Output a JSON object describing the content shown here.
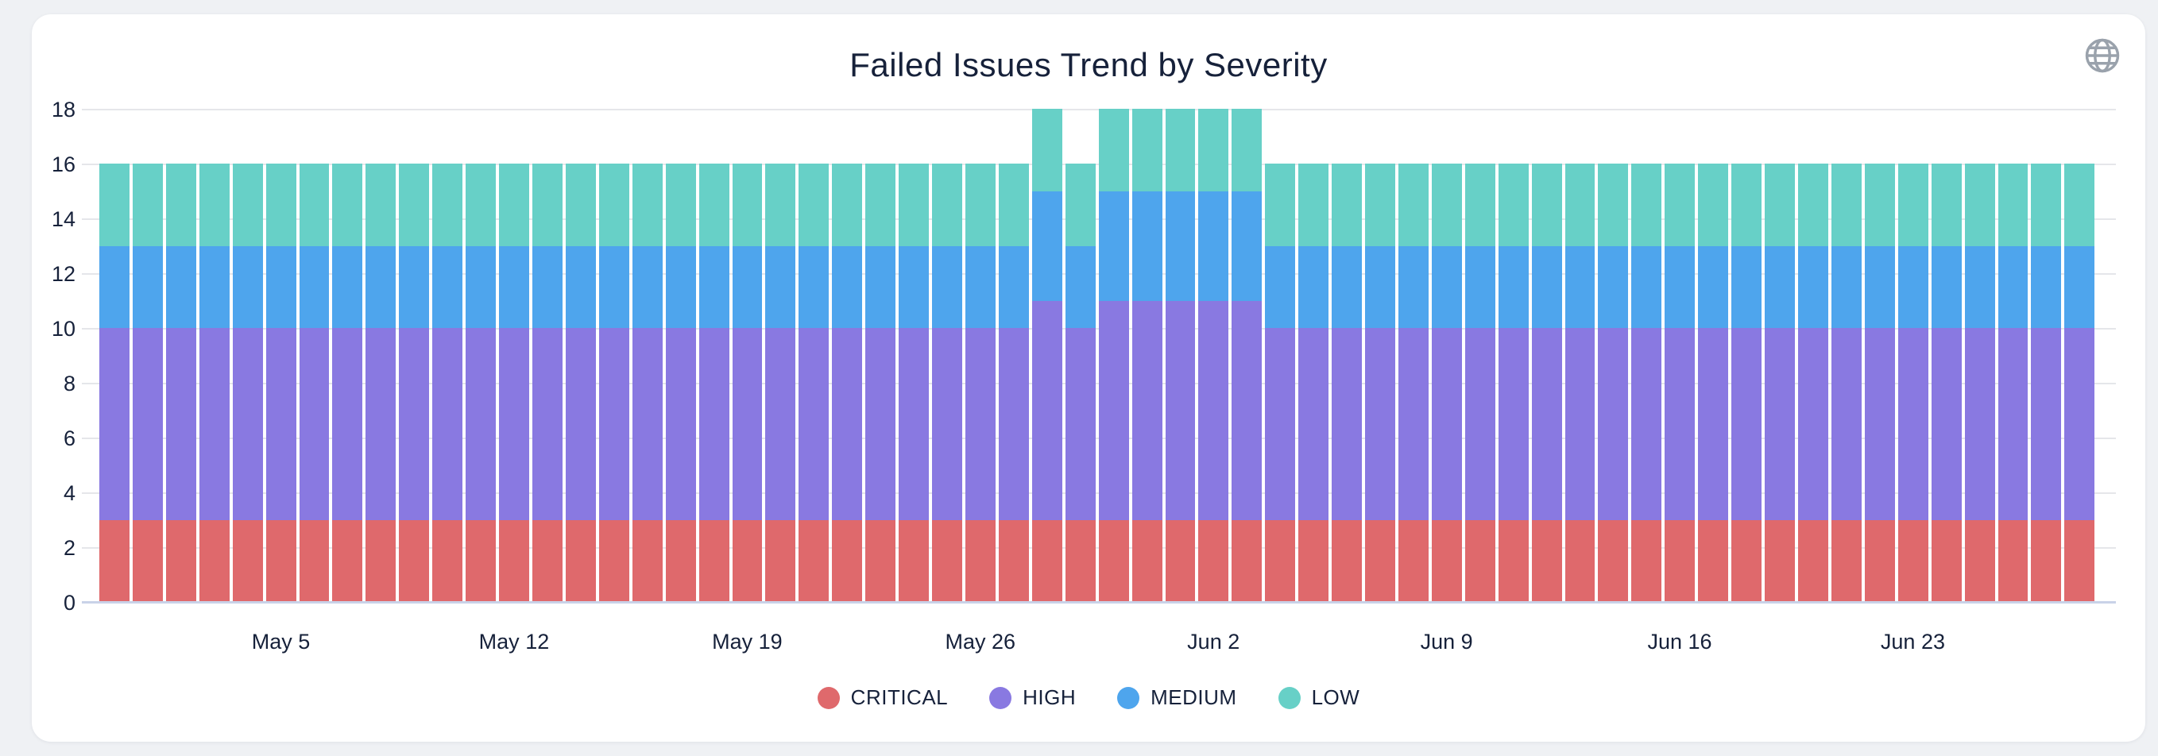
{
  "header": {
    "title": "Failed Issues Trend by Severity"
  },
  "icons": {
    "globe": "globe-icon"
  },
  "colors": {
    "page_background": "#eff1f4",
    "card_background": "#ffffff",
    "text": "#16213a",
    "grid_line": "#e5e6ea",
    "axis_line": "#c9d2e8",
    "globe_icon": "#9aa2ac",
    "critical": "#df696c",
    "high": "#8979e1",
    "medium": "#4ea5ed",
    "low": "#67d0c7"
  },
  "chart_data": {
    "type": "bar",
    "stacked": true,
    "title": "Failed Issues Trend by Severity",
    "grid": true,
    "legend_position": "bottom",
    "ylim": [
      0,
      18
    ],
    "y_ticks": [
      0,
      2,
      4,
      6,
      8,
      10,
      12,
      14,
      16,
      18
    ],
    "categories": [
      "Apr 30",
      "May 1",
      "May 2",
      "May 3",
      "May 4",
      "May 5",
      "May 6",
      "May 7",
      "May 8",
      "May 9",
      "May 10",
      "May 11",
      "May 12",
      "May 13",
      "May 14",
      "May 15",
      "May 16",
      "May 17",
      "May 18",
      "May 19",
      "May 20",
      "May 21",
      "May 22",
      "May 23",
      "May 24",
      "May 25",
      "May 26",
      "May 27",
      "May 28",
      "May 29",
      "May 30",
      "May 31",
      "Jun 1",
      "Jun 2",
      "Jun 3",
      "Jun 4",
      "Jun 5",
      "Jun 6",
      "Jun 7",
      "Jun 8",
      "Jun 9",
      "Jun 10",
      "Jun 11",
      "Jun 12",
      "Jun 13",
      "Jun 14",
      "Jun 15",
      "Jun 16",
      "Jun 17",
      "Jun 18",
      "Jun 19",
      "Jun 20",
      "Jun 21",
      "Jun 22",
      "Jun 23",
      "Jun 24",
      "Jun 25",
      "Jun 26",
      "Jun 27",
      "Jun 28"
    ],
    "x_tick_indices": [
      5,
      12,
      19,
      26,
      33,
      40,
      47,
      54
    ],
    "x_tick_labels": [
      "May 5",
      "May 12",
      "May 19",
      "May 26",
      "Jun 2",
      "Jun 9",
      "Jun 16",
      "Jun 23"
    ],
    "series": [
      {
        "name": "CRITICAL",
        "color": "#df696c",
        "values": [
          3,
          3,
          3,
          3,
          3,
          3,
          3,
          3,
          3,
          3,
          3,
          3,
          3,
          3,
          3,
          3,
          3,
          3,
          3,
          3,
          3,
          3,
          3,
          3,
          3,
          3,
          3,
          3,
          3,
          3,
          3,
          3,
          3,
          3,
          3,
          3,
          3,
          3,
          3,
          3,
          3,
          3,
          3,
          3,
          3,
          3,
          3,
          3,
          3,
          3,
          3,
          3,
          3,
          3,
          3,
          3,
          3,
          3,
          3,
          3
        ]
      },
      {
        "name": "HIGH",
        "color": "#8979e1",
        "values": [
          7,
          7,
          7,
          7,
          7,
          7,
          7,
          7,
          7,
          7,
          7,
          7,
          7,
          7,
          7,
          7,
          7,
          7,
          7,
          7,
          7,
          7,
          7,
          7,
          7,
          7,
          7,
          7,
          8,
          7,
          8,
          8,
          8,
          8,
          8,
          7,
          7,
          7,
          7,
          7,
          7,
          7,
          7,
          7,
          7,
          7,
          7,
          7,
          7,
          7,
          7,
          7,
          7,
          7,
          7,
          7,
          7,
          7,
          7,
          7
        ]
      },
      {
        "name": "MEDIUM",
        "color": "#4ea5ed",
        "values": [
          3,
          3,
          3,
          3,
          3,
          3,
          3,
          3,
          3,
          3,
          3,
          3,
          3,
          3,
          3,
          3,
          3,
          3,
          3,
          3,
          3,
          3,
          3,
          3,
          3,
          3,
          3,
          3,
          4,
          3,
          4,
          4,
          4,
          4,
          4,
          3,
          3,
          3,
          3,
          3,
          3,
          3,
          3,
          3,
          3,
          3,
          3,
          3,
          3,
          3,
          3,
          3,
          3,
          3,
          3,
          3,
          3,
          3,
          3,
          3
        ]
      },
      {
        "name": "LOW",
        "color": "#67d0c7",
        "values": [
          3,
          3,
          3,
          3,
          3,
          3,
          3,
          3,
          3,
          3,
          3,
          3,
          3,
          3,
          3,
          3,
          3,
          3,
          3,
          3,
          3,
          3,
          3,
          3,
          3,
          3,
          3,
          3,
          3,
          3,
          3,
          3,
          3,
          3,
          3,
          3,
          3,
          3,
          3,
          3,
          3,
          3,
          3,
          3,
          3,
          3,
          3,
          3,
          3,
          3,
          3,
          3,
          3,
          3,
          3,
          3,
          3,
          3,
          3,
          3
        ]
      }
    ]
  }
}
